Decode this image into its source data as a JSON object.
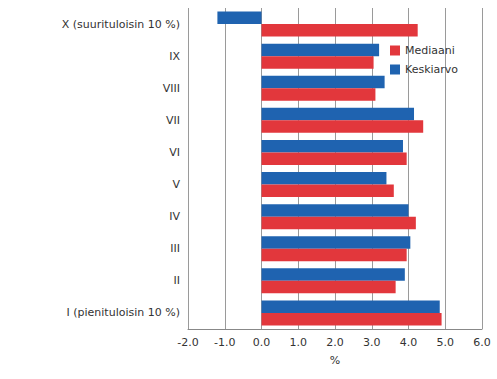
{
  "chart_data": {
    "type": "bar",
    "orientation": "horizontal",
    "categories": [
      "I (pienituloisin 10 %)",
      "II",
      "III",
      "IV",
      "V",
      "VI",
      "VII",
      "VIII",
      "IX",
      "X (suurituloisin 10 %)"
    ],
    "series": [
      {
        "name": "Mediaani",
        "color": "#e2373c",
        "values": [
          4.9,
          3.65,
          3.95,
          4.2,
          3.6,
          3.95,
          4.4,
          3.1,
          3.05,
          4.25
        ]
      },
      {
        "name": "Keskiarvo",
        "color": "#1f63b0",
        "values": [
          4.85,
          3.9,
          4.05,
          4.0,
          3.4,
          3.85,
          4.15,
          3.35,
          3.2,
          -1.2
        ]
      }
    ],
    "x_label": "%",
    "xlim": [
      -2,
      6
    ],
    "xticks": [
      {
        "value": -2,
        "label": "-2.0"
      },
      {
        "value": -1,
        "label": "-1.0"
      },
      {
        "value": 0,
        "label": "0.0"
      },
      {
        "value": 1,
        "label": "1.0"
      },
      {
        "value": 2,
        "label": "2.0"
      },
      {
        "value": 3,
        "label": "3.0"
      },
      {
        "value": 4,
        "label": "4.0"
      },
      {
        "value": 5,
        "label": "5.0"
      },
      {
        "value": 6,
        "label": "6.0"
      }
    ],
    "grid": true,
    "legend": "top-right"
  }
}
